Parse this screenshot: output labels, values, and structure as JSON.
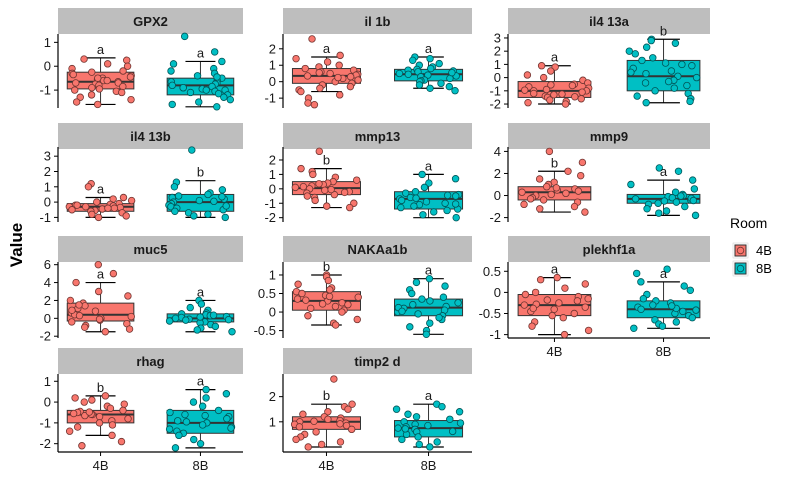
{
  "chart_data": {
    "type": "box",
    "ylabel": "Value",
    "legend": {
      "title": "Room",
      "placement": "right",
      "entries": [
        {
          "name": "4B",
          "color": "#F8766D"
        },
        {
          "name": "8B",
          "color": "#00BFC4"
        }
      ]
    },
    "categories": [
      "4B",
      "8B"
    ],
    "colors": {
      "4B": "#F8766D",
      "8B": "#00BFC4",
      "strip": "#BEBEBE"
    },
    "facets": [
      {
        "name": "GPX2",
        "yticks": [
          -1,
          0,
          1
        ],
        "ylim": [
          -1.75,
          1.35
        ],
        "groups": [
          {
            "cat": "4B",
            "q1": -0.95,
            "med": -0.65,
            "q3": -0.25,
            "lo": -1.6,
            "hi": 0.35,
            "label": "a",
            "points": [
              0.3,
              0.25,
              0.1,
              0,
              -0.1,
              -0.2,
              -0.25,
              -0.3,
              -0.35,
              -0.4,
              -0.45,
              -0.5,
              -0.55,
              -0.6,
              -0.6,
              -0.65,
              -0.7,
              -0.75,
              -0.8,
              -0.85,
              -0.9,
              -0.95,
              -1,
              -1.05,
              -1.1,
              -1.2,
              -1.3,
              -1.4,
              -1.5,
              -1.6,
              -0.5,
              -0.7
            ]
          },
          {
            "cat": "8B",
            "q1": -1.2,
            "med": -0.8,
            "q3": -0.5,
            "lo": -1.7,
            "hi": 0.2,
            "label": "a",
            "points": [
              1.25,
              0.6,
              0.2,
              0.1,
              -0.1,
              -0.2,
              -0.3,
              -0.4,
              -0.5,
              -0.6,
              -0.65,
              -0.7,
              -0.75,
              -0.8,
              -0.85,
              -0.9,
              -0.95,
              -1,
              -1.05,
              -1.1,
              -1.15,
              -1.2,
              -1.3,
              -1.4,
              -1.5,
              -1.6,
              -1.7,
              -0.45,
              -0.9,
              -1.0
            ]
          }
        ]
      },
      {
        "name": "il 1b",
        "yticks": [
          -1,
          0,
          1,
          2
        ],
        "ylim": [
          -1.6,
          2.9
        ],
        "groups": [
          {
            "cat": "4B",
            "q1": -0.1,
            "med": 0.35,
            "q3": 0.8,
            "lo": -0.6,
            "hi": 1.5,
            "label": "a",
            "points": [
              2.6,
              1.6,
              1.4,
              1.2,
              1.0,
              0.9,
              0.8,
              0.7,
              0.6,
              0.5,
              0.45,
              0.4,
              0.35,
              0.3,
              0.2,
              0.1,
              0,
              -0.1,
              -0.2,
              -0.3,
              -0.4,
              -0.5,
              -0.6,
              -0.8,
              -1.0,
              -1.3,
              -1.4,
              0.55,
              0.25
            ]
          },
          {
            "cat": "8B",
            "q1": 0.05,
            "med": 0.45,
            "q3": 0.75,
            "lo": -0.4,
            "hi": 1.5,
            "label": "a",
            "points": [
              1.5,
              1.4,
              1.3,
              1.1,
              1.0,
              0.9,
              0.8,
              0.75,
              0.7,
              0.6,
              0.5,
              0.45,
              0.4,
              0.3,
              0.2,
              0.1,
              0.05,
              0,
              -0.1,
              -0.2,
              -0.3,
              -0.4,
              0.65,
              0.35,
              0.55,
              -0.55
            ]
          }
        ]
      },
      {
        "name": "il4 13a",
        "yticks": [
          -2,
          -1,
          0,
          1,
          2,
          3
        ],
        "ylim": [
          -2.3,
          3.3
        ],
        "groups": [
          {
            "cat": "4B",
            "q1": -1.5,
            "med": -1.0,
            "q3": -0.3,
            "lo": -2.0,
            "hi": 0.9,
            "label": "a",
            "points": [
              0.9,
              0.8,
              0.5,
              0.2,
              0,
              -0.2,
              -0.4,
              -0.5,
              -0.6,
              -0.7,
              -0.8,
              -0.9,
              -1.0,
              -1.0,
              -1.1,
              -1.2,
              -1.3,
              -1.4,
              -1.5,
              -1.6,
              -1.7,
              -1.8,
              -1.9,
              -2.0,
              -1.25,
              -0.95,
              -0.55,
              -1.45
            ]
          },
          {
            "cat": "8B",
            "q1": -1.0,
            "med": 0.1,
            "q3": 1.3,
            "lo": -1.9,
            "hi": 2.9,
            "label": "b",
            "points": [
              2.9,
              2.8,
              2.6,
              2.3,
              2.0,
              1.8,
              1.5,
              1.3,
              1.1,
              0.9,
              0.7,
              0.5,
              0.3,
              0.1,
              0,
              -0.2,
              -0.4,
              -0.6,
              -0.8,
              -1.0,
              -1.2,
              -1.4,
              -1.6,
              -1.8,
              -1.9,
              1.0,
              0.4,
              -0.3
            ]
          }
        ]
      },
      {
        "name": "il4 13b",
        "yticks": [
          -1,
          0,
          1,
          2,
          3
        ],
        "ylim": [
          -1.3,
          3.6
        ],
        "groups": [
          {
            "cat": "4B",
            "q1": -0.6,
            "med": -0.3,
            "q3": -0.1,
            "lo": -1.0,
            "hi": 0.3,
            "label": "a",
            "points": [
              1.2,
              1.0,
              0.3,
              0.2,
              0.1,
              0,
              -0.1,
              -0.15,
              -0.2,
              -0.25,
              -0.3,
              -0.35,
              -0.4,
              -0.45,
              -0.5,
              -0.55,
              -0.6,
              -0.7,
              -0.8,
              -0.9,
              -1.0,
              -0.3,
              -0.2,
              -0.4
            ]
          },
          {
            "cat": "8B",
            "q1": -0.6,
            "med": 0.0,
            "q3": 0.5,
            "lo": -1.0,
            "hi": 1.4,
            "label": "b",
            "points": [
              3.4,
              1.3,
              1.0,
              0.8,
              0.6,
              0.5,
              0.4,
              0.3,
              0.2,
              0.1,
              0,
              -0.1,
              -0.2,
              -0.3,
              -0.4,
              -0.5,
              -0.6,
              -0.7,
              -0.8,
              -0.9,
              -1.0,
              0.05,
              -0.25,
              0.35
            ]
          }
        ]
      },
      {
        "name": "mmp13",
        "yticks": [
          -2,
          -1,
          0,
          1,
          2
        ],
        "ylim": [
          -2.3,
          2.9
        ],
        "groups": [
          {
            "cat": "4B",
            "q1": -0.4,
            "med": 0.05,
            "q3": 0.5,
            "lo": -1.3,
            "hi": 1.4,
            "label": "b",
            "points": [
              2.6,
              1.4,
              1.2,
              1.0,
              0.8,
              0.6,
              0.5,
              0.4,
              0.3,
              0.2,
              0.1,
              0,
              -0.1,
              -0.2,
              -0.3,
              -0.4,
              -0.5,
              -0.6,
              -0.8,
              -1.0,
              -1.2,
              -1.3,
              0.15,
              -0.05,
              0.35,
              -0.25
            ]
          },
          {
            "cat": "8B",
            "q1": -1.4,
            "med": -0.7,
            "q3": -0.2,
            "lo": -2.0,
            "hi": 1.0,
            "label": "a",
            "points": [
              1.0,
              0.7,
              0.4,
              0.1,
              -0.2,
              -0.3,
              -0.4,
              -0.5,
              -0.6,
              -0.7,
              -0.8,
              -0.9,
              -1.0,
              -1.1,
              -1.2,
              -1.3,
              -1.4,
              -1.5,
              -1.6,
              -1.8,
              -2.0,
              -0.65,
              -1.05,
              -0.45
            ]
          }
        ]
      },
      {
        "name": "mmp9",
        "yticks": [
          -2,
          0,
          2,
          4
        ],
        "ylim": [
          -2.4,
          4.4
        ],
        "groups": [
          {
            "cat": "4B",
            "q1": -0.4,
            "med": 0.3,
            "q3": 0.8,
            "lo": -1.5,
            "hi": 2.2,
            "label": "b",
            "points": [
              4.0,
              3.0,
              2.2,
              1.8,
              1.5,
              1.2,
              1.0,
              0.8,
              0.6,
              0.4,
              0.3,
              0.2,
              0.0,
              -0.2,
              -0.4,
              -0.6,
              -0.8,
              -1.0,
              -1.2,
              -1.5,
              0.5,
              0.1,
              -0.3,
              0.7
            ]
          },
          {
            "cat": "8B",
            "q1": -0.7,
            "med": -0.3,
            "q3": 0.1,
            "lo": -1.8,
            "hi": 1.4,
            "label": "a",
            "points": [
              2.5,
              2.2,
              1.4,
              1.0,
              0.6,
              0.3,
              0.1,
              0,
              -0.1,
              -0.2,
              -0.3,
              -0.4,
              -0.5,
              -0.6,
              -0.7,
              -0.8,
              -1.0,
              -1.2,
              -1.4,
              -1.6,
              -1.8,
              -0.25,
              -0.45,
              -0.05
            ]
          }
        ]
      },
      {
        "name": "muc5",
        "yticks": [
          -2,
          0,
          2,
          4,
          6
        ],
        "ylim": [
          -2.2,
          6.3
        ],
        "groups": [
          {
            "cat": "4B",
            "q1": -0.3,
            "med": 0.4,
            "q3": 1.7,
            "lo": -1.5,
            "hi": 4.0,
            "label": "a",
            "points": [
              6.0,
              5.0,
              4.0,
              3.0,
              2.5,
              2.0,
              1.7,
              1.4,
              1.1,
              0.8,
              0.6,
              0.4,
              0.2,
              0,
              -0.2,
              -0.4,
              -0.6,
              -0.8,
              -1.0,
              -1.2,
              -1.5,
              0.9,
              0.3,
              -0.1,
              1.5
            ]
          },
          {
            "cat": "8B",
            "q1": -0.4,
            "med": 0.0,
            "q3": 0.5,
            "lo": -1.5,
            "hi": 2.0,
            "label": "a",
            "points": [
              2.0,
              1.6,
              1.2,
              0.9,
              0.6,
              0.5,
              0.4,
              0.3,
              0.2,
              0.1,
              0,
              -0.1,
              -0.2,
              -0.3,
              -0.4,
              -0.5,
              -0.7,
              -0.9,
              -1.1,
              -1.3,
              -1.5,
              0.15,
              -0.15,
              0.35
            ]
          }
        ]
      },
      {
        "name": "NAKAa1b",
        "yticks": [
          -0.5,
          0.0,
          0.5,
          1.0
        ],
        "ylim": [
          -0.7,
          1.35
        ],
        "groups": [
          {
            "cat": "4B",
            "q1": 0.05,
            "med": 0.3,
            "q3": 0.55,
            "lo": -0.35,
            "hi": 1.0,
            "label": "b",
            "points": [
              1.0,
              0.95,
              0.85,
              0.75,
              0.65,
              0.6,
              0.55,
              0.5,
              0.45,
              0.4,
              0.35,
              0.3,
              0.25,
              0.2,
              0.15,
              0.1,
              0.05,
              0,
              -0.1,
              -0.2,
              -0.3,
              -0.35,
              0.32,
              0.22,
              0.42
            ]
          },
          {
            "cat": "8B",
            "q1": -0.1,
            "med": 0.12,
            "q3": 0.35,
            "lo": -0.6,
            "hi": 0.9,
            "label": "a",
            "points": [
              0.9,
              0.8,
              0.7,
              0.6,
              0.5,
              0.4,
              0.35,
              0.3,
              0.2,
              0.15,
              0.1,
              0.05,
              0,
              -0.05,
              -0.1,
              -0.2,
              -0.3,
              -0.4,
              -0.5,
              -0.6,
              0.12,
              0.02,
              0.25,
              -0.15
            ]
          }
        ]
      },
      {
        "name": "plekhf1a",
        "yticks": [
          -1.0,
          -0.5,
          0.0,
          0.5
        ],
        "ylim": [
          -1.08,
          0.72
        ],
        "groups": [
          {
            "cat": "4B",
            "q1": -0.55,
            "med": -0.3,
            "q3": -0.05,
            "lo": -1.0,
            "hi": 0.35,
            "label": "a",
            "points": [
              0.35,
              0.3,
              0.2,
              0.1,
              0.0,
              -0.05,
              -0.1,
              -0.15,
              -0.2,
              -0.25,
              -0.3,
              -0.35,
              -0.4,
              -0.45,
              -0.5,
              -0.55,
              -0.6,
              -0.7,
              -0.8,
              -0.9,
              -1.0,
              -0.28,
              -0.38,
              -0.18
            ]
          },
          {
            "cat": "8B",
            "q1": -0.6,
            "med": -0.4,
            "q3": -0.2,
            "lo": -0.85,
            "hi": 0.25,
            "label": "a",
            "points": [
              0.55,
              0.45,
              0.25,
              0.15,
              0.05,
              -0.05,
              -0.15,
              -0.2,
              -0.25,
              -0.3,
              -0.35,
              -0.4,
              -0.45,
              -0.5,
              -0.55,
              -0.6,
              -0.65,
              -0.7,
              -0.75,
              -0.8,
              -0.85,
              -0.38,
              -0.42,
              -0.32
            ]
          }
        ]
      },
      {
        "name": "rhag",
        "yticks": [
          -2,
          -1,
          0,
          1
        ],
        "ylim": [
          -2.4,
          1.35
        ],
        "groups": [
          {
            "cat": "4B",
            "q1": -1.0,
            "med": -0.6,
            "q3": -0.4,
            "lo": -1.6,
            "hi": 0.3,
            "label": "b",
            "points": [
              0.3,
              0.2,
              0.1,
              0,
              -0.1,
              -0.2,
              -0.3,
              -0.4,
              -0.45,
              -0.5,
              -0.55,
              -0.6,
              -0.65,
              -0.7,
              -0.8,
              -0.9,
              -1.0,
              -1.1,
              -1.2,
              -1.4,
              -1.6,
              -1.9,
              -2.1,
              -0.58,
              -0.48
            ]
          },
          {
            "cat": "8B",
            "q1": -1.5,
            "med": -1.0,
            "q3": -0.4,
            "lo": -2.2,
            "hi": 0.6,
            "label": "a",
            "points": [
              0.6,
              0.4,
              0.2,
              0,
              -0.2,
              -0.4,
              -0.5,
              -0.6,
              -0.7,
              -0.8,
              -0.9,
              -1.0,
              -1.1,
              -1.2,
              -1.3,
              -1.4,
              -1.5,
              -1.6,
              -1.8,
              -2.0,
              -2.2,
              -0.95,
              -1.25,
              -0.65
            ]
          }
        ]
      },
      {
        "name": "timp2 d",
        "yticks": [
          1,
          2
        ],
        "ylim": [
          -0.2,
          2.9
        ],
        "groups": [
          {
            "cat": "4B",
            "q1": 0.7,
            "med": 1.0,
            "q3": 1.2,
            "lo": 0.0,
            "hi": 1.7,
            "label": "b",
            "points": [
              2.7,
              1.7,
              1.6,
              1.5,
              1.4,
              1.3,
              1.2,
              1.15,
              1.1,
              1.05,
              1.0,
              0.95,
              0.9,
              0.85,
              0.8,
              0.7,
              0.6,
              0.5,
              0.4,
              0.3,
              0.2,
              0.1,
              0.0,
              1.02,
              0.92
            ]
          },
          {
            "cat": "8B",
            "q1": 0.4,
            "med": 0.75,
            "q3": 1.05,
            "lo": 0.0,
            "hi": 1.7,
            "label": "a",
            "points": [
              1.7,
              1.6,
              1.5,
              1.4,
              1.3,
              1.2,
              1.1,
              1.0,
              0.9,
              0.85,
              0.8,
              0.75,
              0.7,
              0.6,
              0.5,
              0.4,
              0.3,
              0.2,
              0.1,
              0.0,
              0.72,
              0.62,
              0.95
            ]
          }
        ]
      }
    ]
  }
}
